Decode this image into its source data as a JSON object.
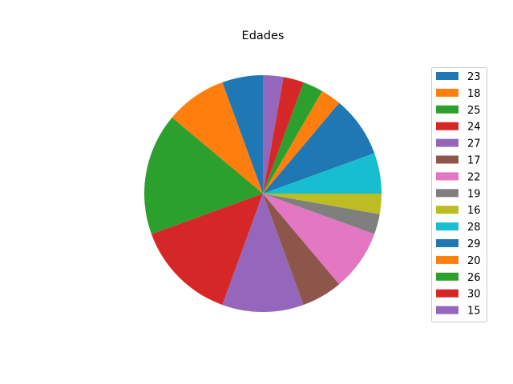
{
  "chart_data": {
    "type": "pie",
    "title": "Edades",
    "start_angle_deg": 90,
    "direction": "counterclockwise",
    "legend_position": "right",
    "slices": [
      {
        "label": "23",
        "value": 2,
        "color": "#1f77b4"
      },
      {
        "label": "18",
        "value": 3,
        "color": "#ff7f0e"
      },
      {
        "label": "25",
        "value": 6,
        "color": "#2ca02c"
      },
      {
        "label": "24",
        "value": 5,
        "color": "#d62728"
      },
      {
        "label": "27",
        "value": 4,
        "color": "#9467bd"
      },
      {
        "label": "17",
        "value": 2,
        "color": "#8c564b"
      },
      {
        "label": "22",
        "value": 3,
        "color": "#e377c2"
      },
      {
        "label": "19",
        "value": 1,
        "color": "#7f7f7f"
      },
      {
        "label": "16",
        "value": 1,
        "color": "#bcbd22"
      },
      {
        "label": "28",
        "value": 2,
        "color": "#17becf"
      },
      {
        "label": "29",
        "value": 3,
        "color": "#1f77b4"
      },
      {
        "label": "20",
        "value": 1,
        "color": "#ff7f0e"
      },
      {
        "label": "26",
        "value": 1,
        "color": "#2ca02c"
      },
      {
        "label": "30",
        "value": 1,
        "color": "#d62728"
      },
      {
        "label": "15",
        "value": 1,
        "color": "#9467bd"
      }
    ]
  }
}
